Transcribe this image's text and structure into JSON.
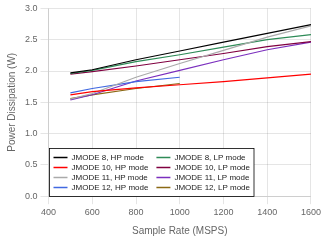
{
  "chart_data": {
    "type": "line",
    "xlabel": "Sample Rate (MSPS)",
    "ylabel": "Power Dissipation (W)",
    "xlim": [
      400,
      1600
    ],
    "ylim": [
      0,
      3
    ],
    "xticks": [
      400,
      600,
      800,
      1000,
      1200,
      1400,
      1600
    ],
    "yticks": [
      {
        "value": 0,
        "label": "0.0"
      },
      0.5,
      {
        "value": 1.0,
        "label": "1.0"
      },
      1.5,
      {
        "value": 2.0,
        "label": "2.0"
      },
      2.5,
      {
        "value": 3.0,
        "label": "3.0"
      }
    ],
    "grid": true,
    "legend": "lower left",
    "marker": "none",
    "series": [
      {
        "name": "JMODE 8, HP mode",
        "color": "#000000",
        "x": [
          500,
          600,
          800,
          1000,
          1200,
          1400,
          1600
        ],
        "values": [
          1.97,
          2.02,
          2.18,
          2.32,
          2.46,
          2.6,
          2.74
        ]
      },
      {
        "name": "JMODE 10, HP mode",
        "color": "#FF0000",
        "x": [
          500,
          600,
          800,
          1000,
          1200,
          1400,
          1600
        ],
        "values": [
          1.62,
          1.67,
          1.73,
          1.78,
          1.83,
          1.89,
          1.95
        ]
      },
      {
        "name": "JMODE 11, HP mode",
        "color": "#AAAAAA",
        "x": [
          500,
          600,
          800,
          1000,
          1200,
          1400,
          1600
        ],
        "values": [
          1.55,
          1.64,
          1.9,
          2.12,
          2.33,
          2.54,
          2.72
        ]
      },
      {
        "name": "JMODE 12, HP mode",
        "color": "#4169E1",
        "x": [
          500,
          600,
          800,
          1000
        ],
        "values": [
          1.65,
          1.72,
          1.83,
          1.9
        ]
      },
      {
        "name": "JMODE 8, LP mode",
        "color": "#2E8B57",
        "x": [
          500,
          600,
          800,
          1000,
          1200,
          1400,
          1600
        ],
        "values": [
          1.96,
          2.01,
          2.15,
          2.26,
          2.38,
          2.5,
          2.58
        ]
      },
      {
        "name": "JMODE 10, LP mode",
        "color": "#800040",
        "x": [
          500,
          600,
          800,
          1000,
          1200,
          1400,
          1600
        ],
        "values": [
          1.95,
          1.99,
          2.08,
          2.18,
          2.28,
          2.39,
          2.47
        ]
      },
      {
        "name": "JMODE 11, LP mode",
        "color": "#7B2FBE",
        "x": [
          500,
          600,
          800,
          1000,
          1200,
          1400,
          1600
        ],
        "values": [
          1.54,
          1.62,
          1.84,
          2.01,
          2.18,
          2.34,
          2.46
        ]
      },
      {
        "name": "JMODE 12, LP mode",
        "color": "#8B6914",
        "x": [
          500,
          600,
          800,
          1000
        ],
        "values": [
          1.56,
          1.62,
          1.72,
          1.8
        ]
      }
    ]
  }
}
